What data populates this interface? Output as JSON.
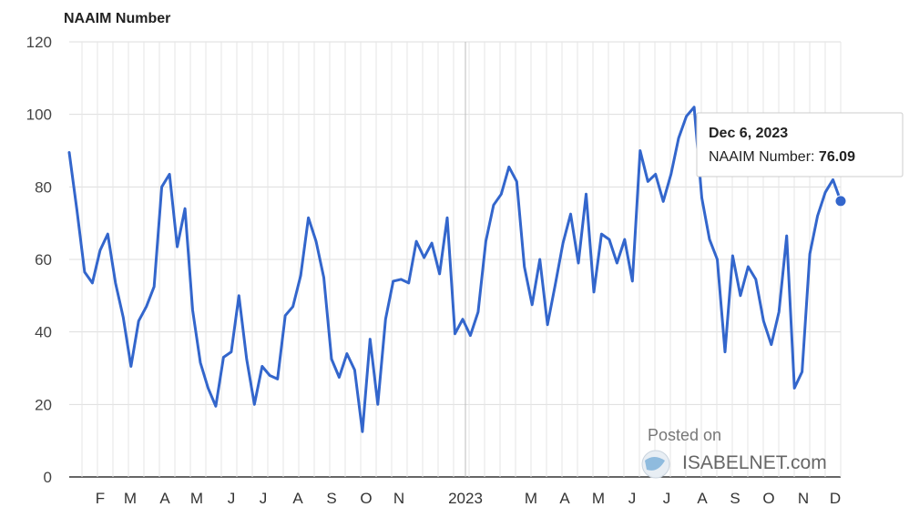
{
  "chart_data": {
    "type": "line",
    "title": "NAAIM Number",
    "xlabel": "",
    "ylabel": "",
    "ylim": [
      0,
      120
    ],
    "yticks": [
      "0",
      "20",
      "40",
      "60",
      "80",
      "100",
      "120"
    ],
    "xticks": [
      "F",
      "M",
      "A",
      "M",
      "J",
      "J",
      "A",
      "S",
      "O",
      "N",
      "2023",
      "M",
      "A",
      "M",
      "J",
      "J",
      "A",
      "S",
      "O",
      "N",
      "D"
    ],
    "grid": true,
    "line_color": "#3366cc",
    "series": [
      {
        "name": "NAAIM Number",
        "values": [
          89.5,
          73.5,
          56.5,
          53.5,
          62.5,
          67,
          53.5,
          44,
          30.5,
          43,
          47,
          52.5,
          80,
          83.5,
          63.5,
          74,
          46,
          31.5,
          24.5,
          19.5,
          33,
          34.5,
          50,
          32.5,
          20,
          30.5,
          28,
          27,
          44.5,
          47,
          55.5,
          71.5,
          65,
          55,
          32.5,
          27.5,
          34,
          29.5,
          12.5,
          38,
          20,
          43.5,
          54,
          54.5,
          53.5,
          65,
          60.5,
          64.5,
          56,
          71.5,
          39.5,
          43.5,
          39,
          45.5,
          65,
          75,
          78,
          85.5,
          81.5,
          58,
          47.5,
          60,
          42,
          53,
          64.5,
          72.5,
          59,
          78,
          51,
          67,
          65.5,
          59,
          65.5,
          54,
          90,
          81.5,
          83.5,
          76,
          83.5,
          93.5,
          99.5,
          102,
          77,
          65.5,
          60,
          34.5,
          61,
          50,
          58,
          54.5,
          43,
          36.5,
          45.5,
          66.5,
          24.5,
          29,
          61.5,
          72,
          78.5,
          82,
          76.09
        ]
      }
    ],
    "tooltip": {
      "date": "Dec 6, 2023",
      "label": "NAAIM Number: ",
      "value": "76.09"
    }
  },
  "watermark": {
    "line1": "Posted on",
    "line2": "ISABELNET.com"
  }
}
